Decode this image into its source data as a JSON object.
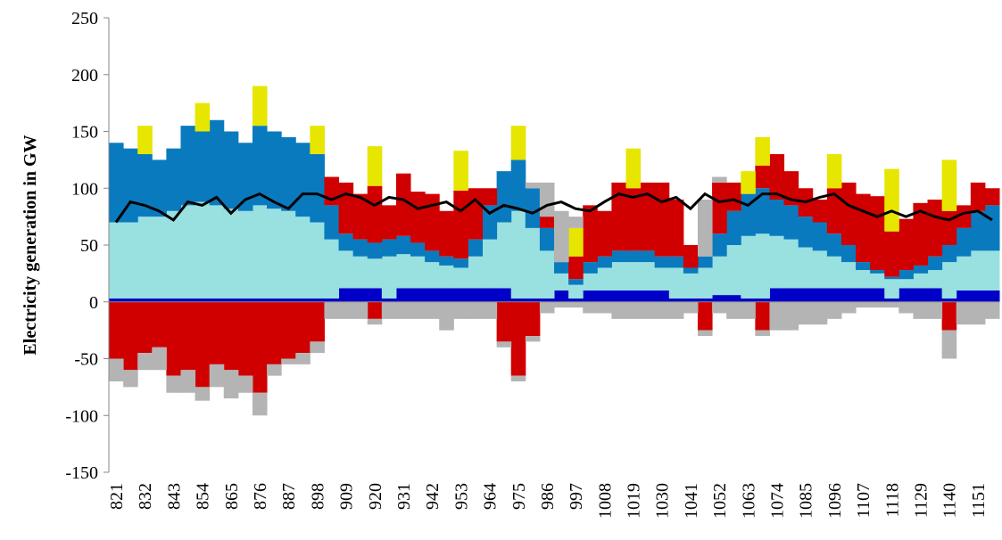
{
  "chart_data": {
    "type": "bar",
    "stacked": true,
    "y_label": "Electricity generation in GW",
    "ylim": [
      -150,
      250
    ],
    "yticks": [
      -150,
      -100,
      -50,
      0,
      50,
      100,
      150,
      200,
      250
    ],
    "categories": [
      "821",
      null,
      "832",
      null,
      "843",
      null,
      "854",
      null,
      "865",
      null,
      "876",
      null,
      "887",
      null,
      "898",
      null,
      "909",
      null,
      "920",
      null,
      "931",
      null,
      "942",
      null,
      "953",
      null,
      "964",
      null,
      "975",
      null,
      "986",
      null,
      "997",
      null,
      "1008",
      null,
      "1019",
      null,
      "1030",
      null,
      "1041",
      null,
      "1052",
      null,
      "1063",
      null,
      "1074",
      null,
      "1085",
      null,
      "1096",
      null,
      "1107",
      null,
      "1118",
      null,
      "1129",
      null,
      "1140",
      null,
      "1151",
      null
    ],
    "series": [
      {
        "color": "#0000c8",
        "values": [
          3,
          3,
          3,
          3,
          3,
          3,
          3,
          3,
          3,
          3,
          3,
          3,
          3,
          3,
          3,
          3,
          12,
          12,
          12,
          3,
          12,
          12,
          12,
          12,
          12,
          12,
          12,
          12,
          3,
          3,
          3,
          10,
          3,
          10,
          10,
          10,
          10,
          10,
          10,
          3,
          3,
          3,
          6,
          6,
          3,
          3,
          12,
          12,
          12,
          12,
          12,
          12,
          12,
          12,
          3,
          12,
          12,
          12,
          3,
          10,
          10,
          10
        ]
      },
      {
        "color": "#99e0e0",
        "values": [
          67,
          67,
          72,
          72,
          77,
          82,
          85,
          82,
          79,
          77,
          82,
          79,
          77,
          72,
          67,
          52,
          33,
          28,
          26,
          37,
          30,
          28,
          23,
          20,
          18,
          28,
          43,
          58,
          77,
          62,
          42,
          15,
          12,
          15,
          20,
          25,
          25,
          25,
          20,
          27,
          22,
          27,
          34,
          44,
          55,
          57,
          46,
          43,
          36,
          33,
          28,
          23,
          16,
          13,
          17,
          8,
          13,
          16,
          32,
          30,
          35,
          35
        ]
      },
      {
        "color": "#0a7abf",
        "values": [
          70,
          65,
          55,
          50,
          55,
          70,
          62,
          75,
          68,
          60,
          70,
          68,
          65,
          65,
          60,
          30,
          15,
          15,
          14,
          15,
          16,
          12,
          10,
          8,
          8,
          15,
          30,
          45,
          45,
          35,
          20,
          10,
          5,
          10,
          10,
          10,
          10,
          10,
          10,
          10,
          5,
          10,
          20,
          30,
          37,
          40,
          32,
          30,
          27,
          25,
          20,
          15,
          7,
          3,
          2,
          8,
          7,
          12,
          15,
          25,
          35,
          40
        ]
      },
      {
        "color": "#d00000",
        "values": [
          0,
          0,
          0,
          0,
          0,
          0,
          0,
          0,
          0,
          0,
          0,
          0,
          0,
          0,
          0,
          25,
          45,
          40,
          50,
          30,
          55,
          45,
          50,
          40,
          60,
          45,
          15,
          0,
          0,
          0,
          10,
          0,
          20,
          50,
          40,
          60,
          55,
          60,
          65,
          50,
          20,
          0,
          45,
          25,
          0,
          20,
          40,
          30,
          25,
          20,
          40,
          55,
          60,
          65,
          40,
          45,
          55,
          50,
          30,
          20,
          25,
          15
        ]
      },
      {
        "color": "#e6e600",
        "values": [
          0,
          0,
          25,
          0,
          0,
          0,
          25,
          0,
          0,
          0,
          35,
          0,
          0,
          0,
          25,
          0,
          0,
          0,
          35,
          0,
          0,
          0,
          0,
          0,
          35,
          0,
          0,
          0,
          30,
          0,
          0,
          0,
          25,
          0,
          0,
          0,
          35,
          0,
          0,
          0,
          0,
          0,
          0,
          0,
          20,
          25,
          0,
          0,
          0,
          0,
          30,
          0,
          0,
          0,
          55,
          0,
          0,
          0,
          45,
          0,
          0,
          0
        ]
      },
      {
        "color": "#b4b4b4",
        "values": [
          0,
          0,
          0,
          0,
          0,
          0,
          0,
          0,
          0,
          0,
          0,
          0,
          0,
          0,
          0,
          0,
          0,
          0,
          0,
          0,
          0,
          0,
          0,
          0,
          0,
          0,
          0,
          0,
          0,
          5,
          30,
          45,
          10,
          0,
          0,
          0,
          0,
          0,
          0,
          0,
          0,
          50,
          5,
          0,
          0,
          0,
          0,
          0,
          0,
          0,
          0,
          0,
          0,
          0,
          0,
          0,
          0,
          0,
          0,
          0,
          0,
          0
        ]
      },
      {
        "color": "#d00000",
        "values": [
          -50,
          -60,
          -45,
          -40,
          -65,
          -60,
          -75,
          -55,
          -60,
          -65,
          -80,
          -55,
          -50,
          -45,
          -35,
          0,
          0,
          0,
          -15,
          0,
          0,
          0,
          0,
          0,
          0,
          0,
          0,
          -35,
          -65,
          -30,
          0,
          0,
          0,
          0,
          0,
          0,
          0,
          0,
          0,
          0,
          0,
          -25,
          0,
          0,
          0,
          -25,
          0,
          0,
          0,
          0,
          0,
          0,
          0,
          0,
          0,
          0,
          0,
          0,
          -25,
          0,
          0,
          0
        ]
      },
      {
        "color": "#b4b4b4",
        "values": [
          -20,
          -15,
          -15,
          -20,
          -15,
          -20,
          -12,
          -20,
          -25,
          -15,
          -20,
          -10,
          -5,
          -10,
          -10,
          -15,
          -15,
          -15,
          -5,
          -15,
          -15,
          -15,
          -15,
          -25,
          -15,
          -15,
          -15,
          -5,
          -5,
          -5,
          -10,
          -5,
          -5,
          -10,
          -10,
          -15,
          -15,
          -15,
          -15,
          -15,
          -10,
          -5,
          -10,
          -15,
          -15,
          -5,
          -25,
          -25,
          -20,
          -20,
          -15,
          -10,
          -5,
          -5,
          -5,
          -10,
          -15,
          -15,
          -25,
          -20,
          -20,
          -15
        ]
      }
    ],
    "line": {
      "color": "#000000",
      "values": [
        70,
        88,
        85,
        80,
        72,
        88,
        85,
        92,
        78,
        90,
        95,
        88,
        82,
        95,
        95,
        90,
        95,
        92,
        85,
        92,
        90,
        82,
        85,
        88,
        80,
        90,
        78,
        85,
        82,
        78,
        85,
        88,
        82,
        80,
        88,
        95,
        92,
        95,
        88,
        92,
        82,
        95,
        88,
        90,
        85,
        95,
        95,
        90,
        88,
        92,
        95,
        85,
        80,
        75,
        80,
        75,
        80,
        75,
        72,
        78,
        80,
        72
      ]
    }
  }
}
